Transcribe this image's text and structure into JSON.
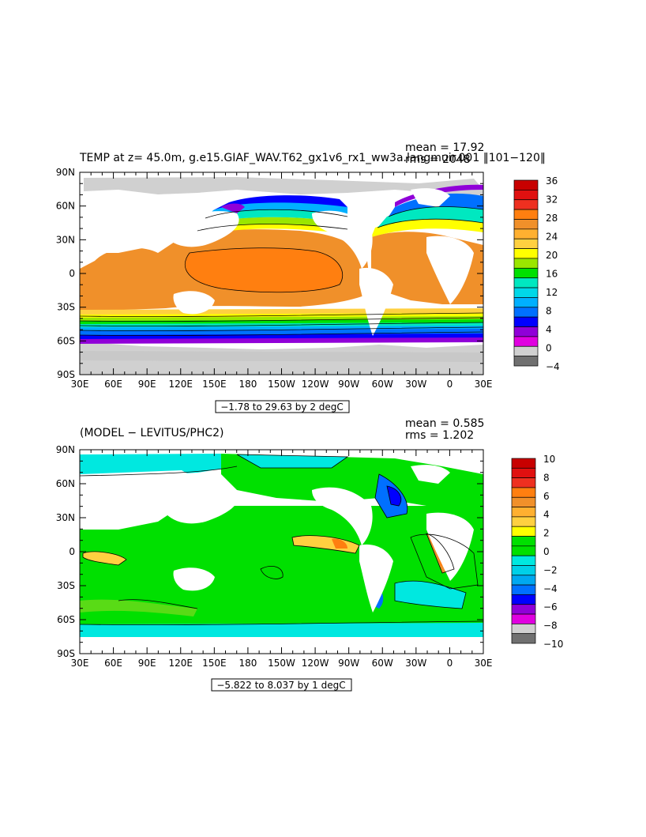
{
  "top_panel": {
    "title": "TEMP at z=  45.0m, g.e15.GIAF_WAV.T62_gx1v6_rx1_ww3a.langmuir.001 ‖101−120‖",
    "mean_text": "mean = 17.92",
    "rms_text": "rms = 2048",
    "range_text": "−1.78 to 29.63 by 2 degC",
    "colorbar_labels": [
      "36",
      "32",
      "28",
      "24",
      "20",
      "16",
      "12",
      "8",
      "4",
      "0",
      "−4"
    ],
    "colorbar_colors": [
      "#c80000",
      "#e01010",
      "#ee3020",
      "#ff7f10",
      "#f0902a",
      "#ffb030",
      "#ffd040",
      "#ffff00",
      "#9ae600",
      "#00e000",
      "#00e8c0",
      "#00d8e8",
      "#00b0ff",
      "#0070ff",
      "#0000ff",
      "#9000d8",
      "#e000e0",
      "#d0d0d0",
      "#707070"
    ]
  },
  "bottom_panel": {
    "title": "(MODEL − LEVITUS/PHC2)",
    "mean_text": "mean = 0.585",
    "rms_text": "rms = 1.202",
    "range_text": "−5.822 to 8.037 by 1 degC",
    "colorbar_labels": [
      "10",
      "8",
      "6",
      "4",
      "2",
      "0",
      "−2",
      "−4",
      "−6",
      "−8",
      "−10"
    ],
    "colorbar_colors": [
      "#c80000",
      "#e01010",
      "#ee3020",
      "#ff7f10",
      "#f0902a",
      "#ffb030",
      "#ffd040",
      "#ffff00",
      "#00e000",
      "#00e000",
      "#00e8e0",
      "#00d0e8",
      "#00a8f0",
      "#0070ff",
      "#0000ff",
      "#9000d8",
      "#e000e0",
      "#d0d0d0",
      "#707070"
    ]
  },
  "axes": {
    "lat_labels": [
      "90N",
      "60N",
      "30N",
      "0",
      "30S",
      "60S",
      "90S"
    ],
    "lon_labels": [
      "30E",
      "60E",
      "90E",
      "120E",
      "150E",
      "180",
      "150W",
      "120W",
      "90W",
      "60W",
      "30W",
      "0",
      "30E"
    ]
  },
  "colors": {
    "land": "#ffffff",
    "ice": "#d0d0d0",
    "frame": "#000000"
  }
}
